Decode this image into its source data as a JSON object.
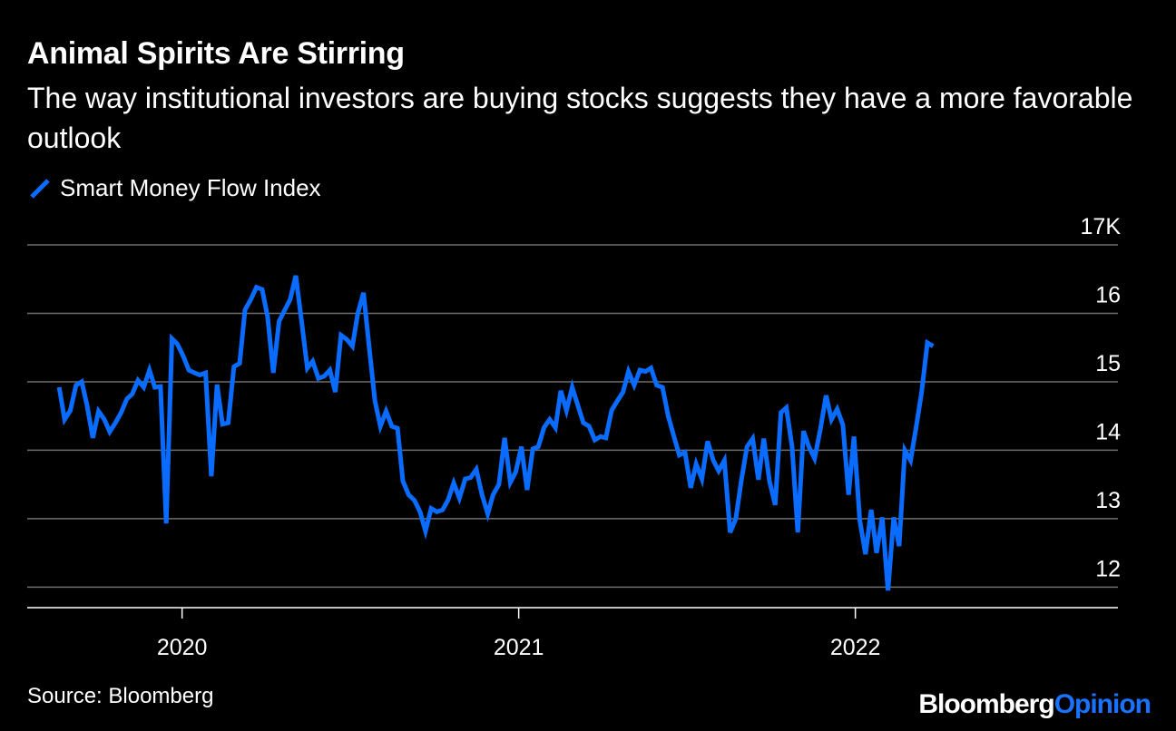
{
  "header": {
    "title": "Animal Spirits Are Stirring",
    "subtitle": "The way institutional investors are buying stocks suggests they have a more favorable outlook"
  },
  "footer": {
    "source": "Source: Bloomberg",
    "brand_primary": "Bloomberg",
    "brand_secondary": "Opinion"
  },
  "colors": {
    "line": "#0a6cff",
    "grid": "#6e6e6e",
    "background": "#000000",
    "text": "#ffffff"
  },
  "chart_data": {
    "type": "line",
    "title": "Animal Spirits Are Stirring",
    "subtitle": "The way institutional investors are buying stocks suggests they have a more favorable outlook",
    "xlabel": "",
    "ylabel": "",
    "ylim": [
      11.7,
      17
    ],
    "xlim": [
      2019.54,
      2022.78
    ],
    "y_ticks": [
      {
        "value": 17,
        "label": "17K"
      },
      {
        "value": 16,
        "label": "16"
      },
      {
        "value": 15,
        "label": "15"
      },
      {
        "value": 14,
        "label": "14"
      },
      {
        "value": 13,
        "label": "13"
      },
      {
        "value": 12,
        "label": "12"
      }
    ],
    "x_ticks": [
      {
        "value": 2020,
        "label": "2020"
      },
      {
        "value": 2021,
        "label": "2021"
      },
      {
        "value": 2022,
        "label": "2022"
      }
    ],
    "legend_position": "top-left",
    "series": [
      {
        "name": "Smart Money Flow Index",
        "points": [
          [
            2019.635,
            14.92
          ],
          [
            2019.651,
            14.45
          ],
          [
            2019.668,
            14.58
          ],
          [
            2019.685,
            14.95
          ],
          [
            2019.702,
            15.0
          ],
          [
            2019.718,
            14.65
          ],
          [
            2019.735,
            14.18
          ],
          [
            2019.752,
            14.57
          ],
          [
            2019.769,
            14.45
          ],
          [
            2019.785,
            14.27
          ],
          [
            2019.802,
            14.4
          ],
          [
            2019.819,
            14.55
          ],
          [
            2019.836,
            14.75
          ],
          [
            2019.852,
            14.82
          ],
          [
            2019.869,
            15.02
          ],
          [
            2019.886,
            14.92
          ],
          [
            2019.903,
            15.17
          ],
          [
            2019.919,
            14.92
          ],
          [
            2019.936,
            14.93
          ],
          [
            2019.953,
            12.93
          ],
          [
            2019.97,
            15.63
          ],
          [
            2019.986,
            15.55
          ],
          [
            2020.003,
            15.38
          ],
          [
            2020.02,
            15.17
          ],
          [
            2020.037,
            15.13
          ],
          [
            2020.053,
            15.1
          ],
          [
            2020.07,
            15.13
          ],
          [
            2020.087,
            13.62
          ],
          [
            2020.104,
            14.96
          ],
          [
            2020.12,
            14.38
          ],
          [
            2020.137,
            14.4
          ],
          [
            2020.154,
            15.22
          ],
          [
            2020.171,
            15.27
          ],
          [
            2020.187,
            16.05
          ],
          [
            2020.204,
            16.2
          ],
          [
            2020.221,
            16.38
          ],
          [
            2020.238,
            16.35
          ],
          [
            2020.254,
            15.95
          ],
          [
            2020.271,
            15.13
          ],
          [
            2020.288,
            15.88
          ],
          [
            2020.305,
            16.05
          ],
          [
            2020.321,
            16.2
          ],
          [
            2020.338,
            16.55
          ],
          [
            2020.355,
            15.88
          ],
          [
            2020.372,
            15.2
          ],
          [
            2020.388,
            15.3
          ],
          [
            2020.405,
            15.05
          ],
          [
            2020.422,
            15.08
          ],
          [
            2020.439,
            15.17
          ],
          [
            2020.455,
            14.85
          ],
          [
            2020.472,
            15.68
          ],
          [
            2020.489,
            15.62
          ],
          [
            2020.506,
            15.52
          ],
          [
            2020.522,
            16.0
          ],
          [
            2020.539,
            16.3
          ],
          [
            2020.556,
            15.5
          ],
          [
            2020.573,
            14.72
          ],
          [
            2020.589,
            14.35
          ],
          [
            2020.606,
            14.57
          ],
          [
            2020.623,
            14.35
          ],
          [
            2020.64,
            14.32
          ],
          [
            2020.656,
            13.55
          ],
          [
            2020.673,
            13.35
          ],
          [
            2020.69,
            13.27
          ],
          [
            2020.707,
            13.1
          ],
          [
            2020.723,
            12.82
          ],
          [
            2020.74,
            13.15
          ],
          [
            2020.757,
            13.1
          ],
          [
            2020.774,
            13.13
          ],
          [
            2020.79,
            13.27
          ],
          [
            2020.807,
            13.52
          ],
          [
            2020.824,
            13.3
          ],
          [
            2020.841,
            13.58
          ],
          [
            2020.857,
            13.6
          ],
          [
            2020.874,
            13.72
          ],
          [
            2020.891,
            13.35
          ],
          [
            2020.908,
            13.07
          ],
          [
            2020.924,
            13.35
          ],
          [
            2020.941,
            13.5
          ],
          [
            2020.958,
            14.18
          ],
          [
            2020.975,
            13.53
          ],
          [
            2020.991,
            13.68
          ],
          [
            2021.008,
            14.05
          ],
          [
            2021.025,
            13.42
          ],
          [
            2021.042,
            14.02
          ],
          [
            2021.058,
            14.05
          ],
          [
            2021.075,
            14.33
          ],
          [
            2021.092,
            14.45
          ],
          [
            2021.109,
            14.33
          ],
          [
            2021.125,
            14.87
          ],
          [
            2021.142,
            14.58
          ],
          [
            2021.159,
            14.92
          ],
          [
            2021.176,
            14.65
          ],
          [
            2021.192,
            14.4
          ],
          [
            2021.209,
            14.35
          ],
          [
            2021.226,
            14.15
          ],
          [
            2021.243,
            14.2
          ],
          [
            2021.259,
            14.18
          ],
          [
            2021.276,
            14.58
          ],
          [
            2021.293,
            14.72
          ],
          [
            2021.31,
            14.85
          ],
          [
            2021.326,
            15.15
          ],
          [
            2021.343,
            14.95
          ],
          [
            2021.36,
            15.17
          ],
          [
            2021.377,
            15.15
          ],
          [
            2021.393,
            15.2
          ],
          [
            2021.41,
            14.95
          ],
          [
            2021.427,
            14.92
          ],
          [
            2021.444,
            14.5
          ],
          [
            2021.46,
            14.22
          ],
          [
            2021.477,
            13.93
          ],
          [
            2021.494,
            13.97
          ],
          [
            2021.511,
            13.45
          ],
          [
            2021.527,
            13.8
          ],
          [
            2021.544,
            13.58
          ],
          [
            2021.561,
            14.13
          ],
          [
            2021.578,
            13.85
          ],
          [
            2021.594,
            13.7
          ],
          [
            2021.611,
            13.85
          ],
          [
            2021.628,
            12.8
          ],
          [
            2021.645,
            13.0
          ],
          [
            2021.661,
            13.55
          ],
          [
            2021.678,
            14.05
          ],
          [
            2021.695,
            14.17
          ],
          [
            2021.712,
            13.57
          ],
          [
            2021.728,
            14.17
          ],
          [
            2021.745,
            13.55
          ],
          [
            2021.762,
            13.2
          ],
          [
            2021.779,
            14.55
          ],
          [
            2021.795,
            14.62
          ],
          [
            2021.812,
            14.05
          ],
          [
            2021.829,
            12.8
          ],
          [
            2021.846,
            14.28
          ],
          [
            2021.862,
            14.05
          ],
          [
            2021.879,
            13.88
          ],
          [
            2021.896,
            14.3
          ],
          [
            2021.913,
            14.8
          ],
          [
            2021.929,
            14.45
          ],
          [
            2021.946,
            14.6
          ],
          [
            2021.963,
            14.37
          ],
          [
            2021.98,
            13.35
          ],
          [
            2021.996,
            14.2
          ],
          [
            2022.013,
            12.98
          ],
          [
            2022.03,
            12.48
          ],
          [
            2022.047,
            13.13
          ],
          [
            2022.063,
            12.5
          ],
          [
            2022.08,
            13.02
          ],
          [
            2022.097,
            11.95
          ],
          [
            2022.114,
            13.02
          ],
          [
            2022.13,
            12.6
          ],
          [
            2022.147,
            14.0
          ],
          [
            2022.164,
            13.85
          ],
          [
            2022.181,
            14.35
          ],
          [
            2022.197,
            14.85
          ],
          [
            2022.214,
            15.57
          ],
          [
            2022.231,
            15.52
          ]
        ]
      }
    ]
  }
}
